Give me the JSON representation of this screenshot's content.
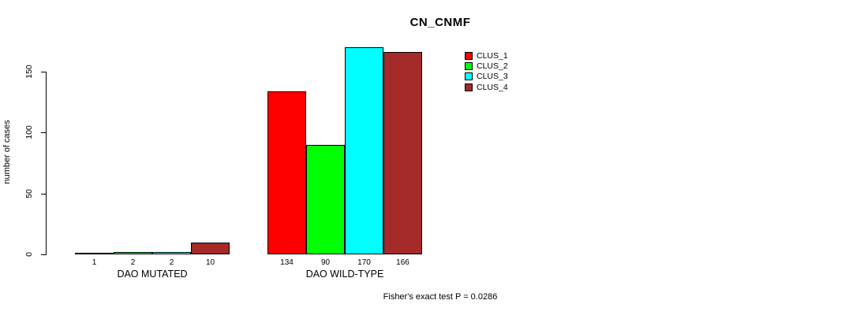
{
  "chart_data": {
    "type": "bar",
    "title": "CN_CNMF",
    "ylabel": "number of cases",
    "xlabel": "",
    "yticks": [
      0,
      50,
      100,
      150
    ],
    "ylim": [
      0,
      175
    ],
    "grid": false,
    "legend_position": "top-right",
    "series": [
      {
        "name": "CLUS_1",
        "color": "#FF0000"
      },
      {
        "name": "CLUS_2",
        "color": "#00FF00"
      },
      {
        "name": "CLUS_3",
        "color": "#00FFFF"
      },
      {
        "name": "CLUS_4",
        "color": "#A52A2A"
      }
    ],
    "groups": [
      {
        "label": "DAO MUTATED",
        "values": [
          1,
          2,
          2,
          10
        ]
      },
      {
        "label": "DAO WILD-TYPE",
        "values": [
          134,
          90,
          170,
          166
        ]
      }
    ],
    "annotation": "Fisher's exact test P = 0.0286"
  }
}
